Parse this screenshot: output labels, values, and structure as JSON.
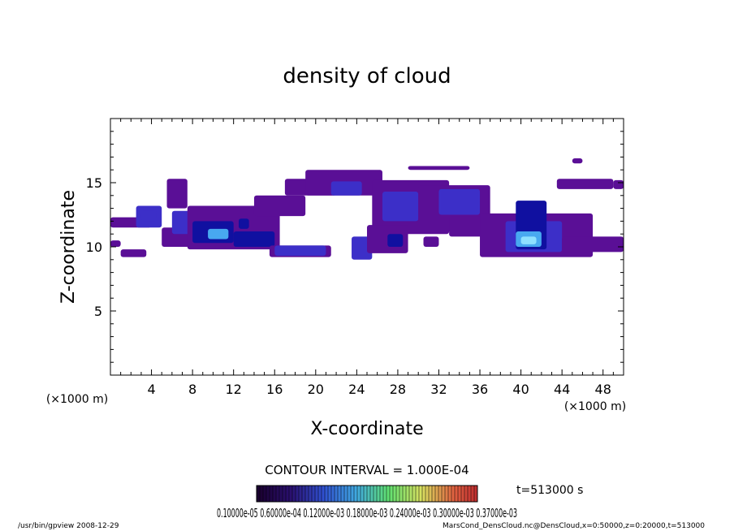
{
  "chart_data": {
    "type": "heatmap",
    "title": "density of cloud",
    "xlabel": "X-coordinate",
    "ylabel": "Z-coordinate",
    "x_unit": "(×1000 m)",
    "y_unit": "(×1000 m)",
    "xlim": [
      0,
      50
    ],
    "ylim": [
      0,
      20
    ],
    "x_ticks": [
      4,
      8,
      12,
      16,
      20,
      24,
      28,
      32,
      36,
      40,
      44,
      48
    ],
    "y_ticks": [
      5,
      10,
      15
    ],
    "contour_interval": "CONTOUR INTERVAL = 1.000E-04",
    "time_label": "t=513000 s",
    "colorbar_labels": "0.10000e-05 0.60000e-04 0.12000e-03 0.18000e-03 0.24000e-03 0.30000e-03 0.37000e-03",
    "colorbar_range": [
      0.0,
      0.0007
    ],
    "colors": {
      "low": "#5a0f96",
      "mid": "#3c2fc8",
      "high": "#1010a0",
      "peak": "#48a8f0"
    },
    "cloud_regions": [
      {
        "x": [
          0,
          1
        ],
        "z": [
          10,
          10.5
        ],
        "level": 1
      },
      {
        "x": [
          0,
          4
        ],
        "z": [
          11.5,
          12.3
        ],
        "level": 1
      },
      {
        "x": [
          2.5,
          5
        ],
        "z": [
          11.5,
          13.2
        ],
        "level": 2
      },
      {
        "x": [
          1,
          3.5
        ],
        "z": [
          9.2,
          9.8
        ],
        "level": 1
      },
      {
        "x": [
          5,
          8
        ],
        "z": [
          10,
          11.5
        ],
        "level": 1
      },
      {
        "x": [
          5.5,
          7.5
        ],
        "z": [
          13,
          15.3
        ],
        "level": 1
      },
      {
        "x": [
          6,
          9.5
        ],
        "z": [
          11,
          12.8
        ],
        "level": 2
      },
      {
        "x": [
          7.5,
          16.5
        ],
        "z": [
          9.8,
          13.2
        ],
        "level": 1
      },
      {
        "x": [
          8,
          12
        ],
        "z": [
          10.3,
          12
        ],
        "level": 3
      },
      {
        "x": [
          9.5,
          11.5
        ],
        "z": [
          10.6,
          11.4
        ],
        "level": 4
      },
      {
        "x": [
          12,
          16
        ],
        "z": [
          10,
          11.2
        ],
        "level": 3
      },
      {
        "x": [
          14,
          19
        ],
        "z": [
          12.4,
          14
        ],
        "level": 1
      },
      {
        "x": [
          17,
          22
        ],
        "z": [
          14,
          15.3
        ],
        "level": 1
      },
      {
        "x": [
          19,
          26.5
        ],
        "z": [
          14,
          16
        ],
        "level": 1
      },
      {
        "x": [
          21.5,
          24.5
        ],
        "z": [
          14,
          15.1
        ],
        "level": 2
      },
      {
        "x": [
          15.5,
          21.5
        ],
        "z": [
          9.2,
          10.1
        ],
        "level": 1
      },
      {
        "x": [
          16,
          21
        ],
        "z": [
          9.3,
          10.1
        ],
        "level": 2
      },
      {
        "x": [
          23.5,
          25.5
        ],
        "z": [
          9,
          10.8
        ],
        "level": 2
      },
      {
        "x": [
          25.5,
          33
        ],
        "z": [
          11,
          15.2
        ],
        "level": 1
      },
      {
        "x": [
          26.5,
          30
        ],
        "z": [
          12,
          14.3
        ],
        "level": 2
      },
      {
        "x": [
          25,
          29
        ],
        "z": [
          9.5,
          11.7
        ],
        "level": 1
      },
      {
        "x": [
          27,
          28.5
        ],
        "z": [
          10,
          11
        ],
        "level": 3
      },
      {
        "x": [
          30,
          37
        ],
        "z": [
          11.2,
          14.8
        ],
        "level": 1
      },
      {
        "x": [
          32,
          36
        ],
        "z": [
          12.5,
          14.5
        ],
        "level": 2
      },
      {
        "x": [
          29,
          35
        ],
        "z": [
          16,
          16.3
        ],
        "level": 1
      },
      {
        "x": [
          33,
          39
        ],
        "z": [
          10.8,
          12.4
        ],
        "level": 1
      },
      {
        "x": [
          36,
          47
        ],
        "z": [
          9.2,
          12.6
        ],
        "level": 1
      },
      {
        "x": [
          38.5,
          44
        ],
        "z": [
          9.6,
          12
        ],
        "level": 2
      },
      {
        "x": [
          39.5,
          42.5
        ],
        "z": [
          9.8,
          13.6
        ],
        "level": 3
      },
      {
        "x": [
          39.5,
          42
        ],
        "z": [
          10,
          11.2
        ],
        "level": 4
      },
      {
        "x": [
          40,
          41.5
        ],
        "z": [
          10.2,
          10.8
        ],
        "level": 5
      },
      {
        "x": [
          44,
          50
        ],
        "z": [
          9.6,
          10.8
        ],
        "level": 1
      },
      {
        "x": [
          43.5,
          49
        ],
        "z": [
          14.5,
          15.3
        ],
        "level": 1
      },
      {
        "x": [
          49,
          50
        ],
        "z": [
          14.5,
          15.2
        ],
        "level": 1
      },
      {
        "x": [
          45,
          46
        ],
        "z": [
          16.5,
          16.9
        ],
        "level": 1
      },
      {
        "x": [
          12.5,
          13.5
        ],
        "z": [
          11.4,
          12.2
        ],
        "level": 3
      },
      {
        "x": [
          3,
          4.5
        ],
        "z": [
          12,
          12.8
        ],
        "level": 2
      },
      {
        "x": [
          30.5,
          32
        ],
        "z": [
          10,
          10.8
        ],
        "level": 1
      }
    ]
  },
  "footer": {
    "left": "/usr/bin/gpview   2008-12-29",
    "right": "MarsCond_DensCloud.nc@DensCloud,x=0:50000,z=0:20000,t=513000"
  }
}
